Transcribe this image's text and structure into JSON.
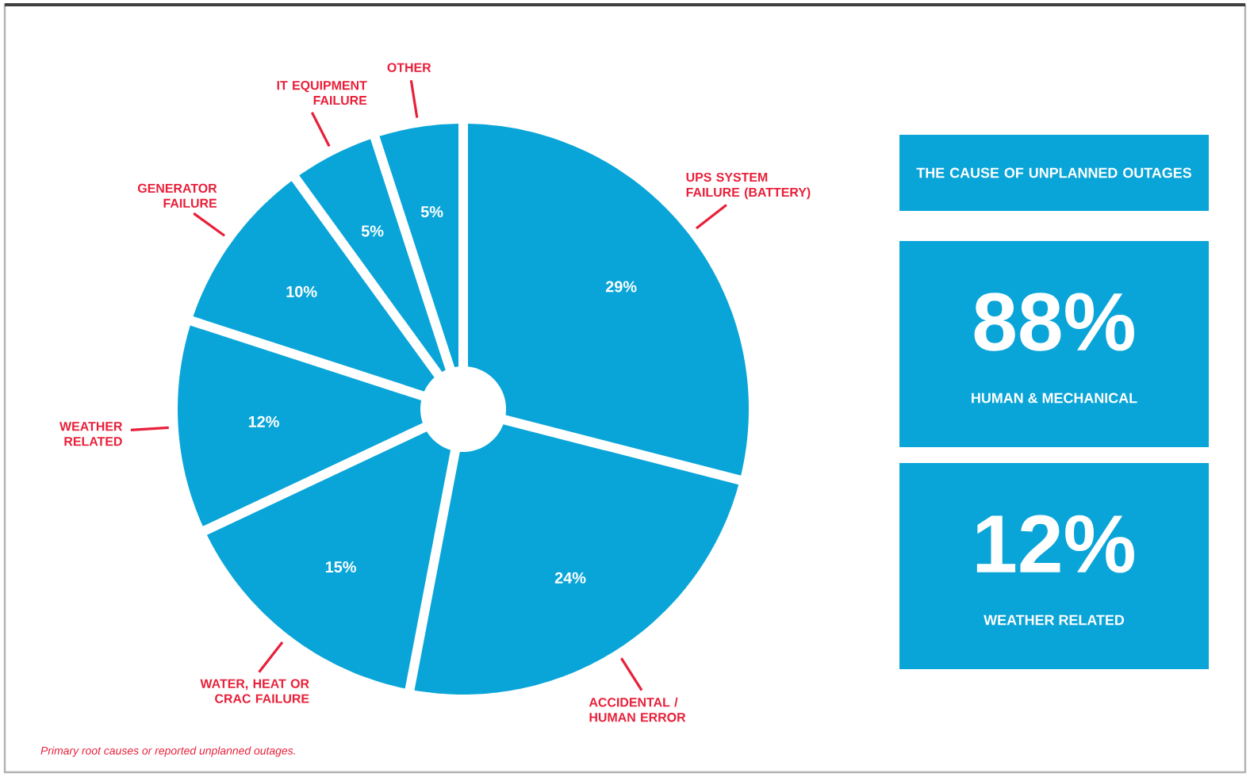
{
  "chart_data": {
    "type": "donut",
    "categories": [
      "UPS SYSTEM FAILURE (BATTERY)",
      "ACCIDENTAL / HUMAN ERROR",
      "WATER, HEAT OR CRAC FAILURE",
      "WEATHER RELATED",
      "GENERATOR FAILURE",
      "IT EQUIPMENT FAILURE",
      "OTHER"
    ],
    "values": [
      29,
      24,
      15,
      12,
      10,
      5,
      5
    ],
    "value_labels": [
      "29%",
      "24%",
      "15%",
      "12%",
      "10%",
      "5%",
      "5%"
    ],
    "colors": [
      "#0aa5d8",
      "#0aa5d8",
      "#0aa5d8",
      "#0aa5d8",
      "#0aa5d8",
      "#0aa5d8",
      "#0aa5d8"
    ],
    "annotations": [
      "THE CAUSE OF UNPLANNED OUTAGES",
      "88%",
      "HUMAN & MECHANICAL",
      "12%",
      "WEATHER RELATED",
      "Primary root causes or reported unplanned outages."
    ]
  }
}
